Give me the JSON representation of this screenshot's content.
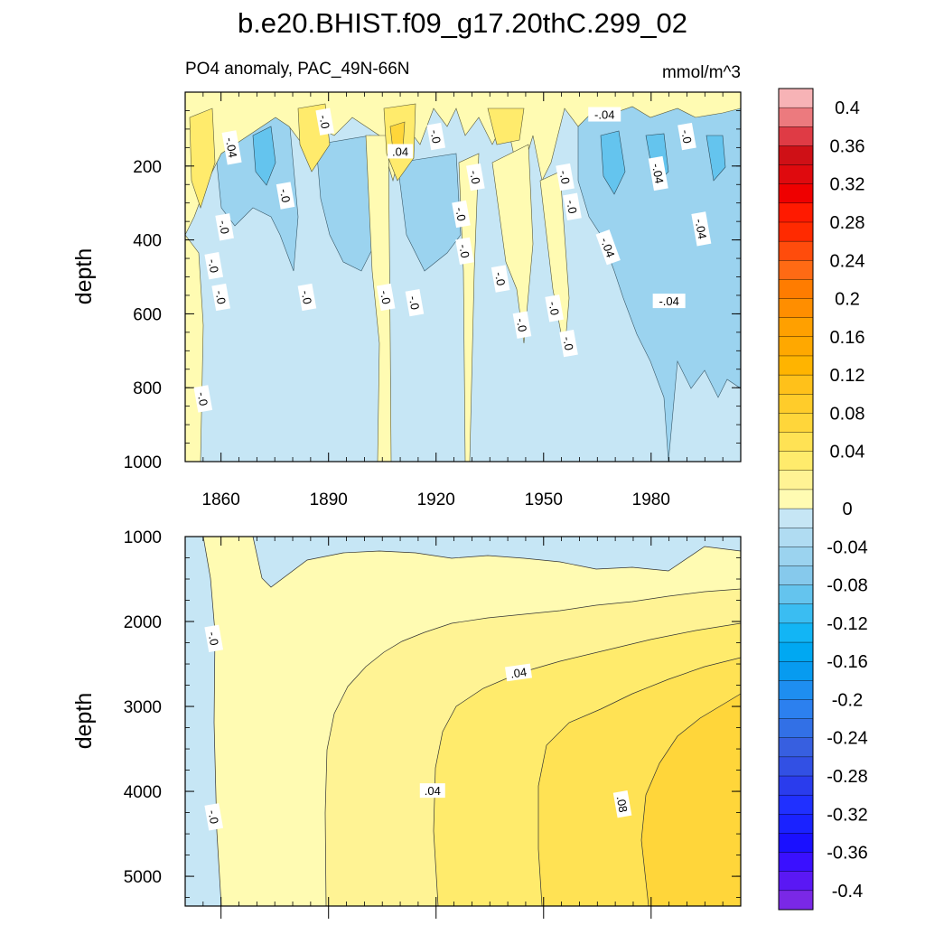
{
  "chart_data": [
    {
      "type": "heatmap",
      "title": "b.e20.BHIST.f09_g17.20thC.299_02",
      "subtitle_left": "PO4 anomaly, PAC_49N-66N",
      "subtitle_right": "mmol/m^3",
      "xlabel": "",
      "ylabel": "depth",
      "xlim": [
        1850,
        2005
      ],
      "ylim": [
        1000,
        0
      ],
      "xticks": [
        1860,
        1890,
        1920,
        1950,
        1980
      ],
      "yticks": [
        200,
        400,
        600,
        800,
        1000
      ],
      "y_reversed": true,
      "contour_labels": [
        {
          "text": "-.04",
          "x": 1863,
          "y": 150
        },
        {
          "text": "-.0",
          "x": 1889,
          "y": 80
        },
        {
          "text": ".04",
          "x": 1910,
          "y": 160
        },
        {
          "text": "-.0",
          "x": 1920,
          "y": 120
        },
        {
          "text": "-.04",
          "x": 1967,
          "y": 60
        },
        {
          "text": "-.04",
          "x": 1982,
          "y": 220
        },
        {
          "text": "-.0",
          "x": 1990,
          "y": 120
        },
        {
          "text": "-.0",
          "x": 1878,
          "y": 280
        },
        {
          "text": "-.0",
          "x": 1861,
          "y": 365
        },
        {
          "text": "-.0",
          "x": 1858,
          "y": 470
        },
        {
          "text": "-.0",
          "x": 1860,
          "y": 555
        },
        {
          "text": "-.0",
          "x": 1884,
          "y": 555
        },
        {
          "text": "-.0",
          "x": 1906,
          "y": 555
        },
        {
          "text": "-.0",
          "x": 1914,
          "y": 570
        },
        {
          "text": "-.0",
          "x": 1928,
          "y": 430
        },
        {
          "text": "-.0",
          "x": 1927,
          "y": 330
        },
        {
          "text": "-.0",
          "x": 1931,
          "y": 230
        },
        {
          "text": "-.0",
          "x": 1938,
          "y": 505
        },
        {
          "text": "-.0",
          "x": 1956,
          "y": 230
        },
        {
          "text": "-.0",
          "x": 1958,
          "y": 310
        },
        {
          "text": "-.04",
          "x": 1968,
          "y": 420
        },
        {
          "text": "-.04",
          "x": 1994,
          "y": 370
        },
        {
          "text": "-.04",
          "x": 1985,
          "y": 565
        },
        {
          "text": "-.0",
          "x": 1944,
          "y": 630
        },
        {
          "text": "-.0",
          "x": 1953,
          "y": 585
        },
        {
          "text": "-.0",
          "x": 1957,
          "y": 680
        },
        {
          "text": "-.0",
          "x": 1855,
          "y": 830
        }
      ]
    },
    {
      "type": "heatmap",
      "xlabel": "",
      "ylabel": "depth",
      "xlim": [
        1850,
        2005
      ],
      "ylim": [
        5350,
        1000
      ],
      "xticks": [
        1860,
        1890,
        1920,
        1950,
        1980
      ],
      "yticks": [
        1000,
        2000,
        3000,
        4000,
        5000
      ],
      "y_reversed": true,
      "contour_labels": [
        {
          "text": "-.0",
          "x": 1858,
          "y": 2200
        },
        {
          "text": ".04",
          "x": 1943,
          "y": 2600
        },
        {
          "text": ".04",
          "x": 1919,
          "y": 3990
        },
        {
          "text": ".08",
          "x": 1972,
          "y": 4150
        },
        {
          "text": "-.0",
          "x": 1858,
          "y": 4300
        }
      ]
    }
  ],
  "colorbar": {
    "levels_top_to_bottom": [
      "0.4",
      "0.36",
      "0.32",
      "0.28",
      "0.24",
      "0.2",
      "0.16",
      "0.12",
      "0.08",
      "0.04",
      "0",
      "-0.04",
      "-0.08",
      "-0.12",
      "-0.16",
      "-0.2",
      "-0.24",
      "-0.28",
      "-0.32",
      "-0.36",
      "-0.4"
    ],
    "colors_top_to_bottom": [
      "#f7b3b6",
      "#ec7a7e",
      "#df3b45",
      "#cf1016",
      "#df0a0e",
      "#ef0000",
      "#ff1a00",
      "#ff2a00",
      "#ff4c0c",
      "#ff6a14",
      "#ff7c00",
      "#ff8e00",
      "#ffa000",
      "#ffa800",
      "#ffb400",
      "#ffc11a",
      "#ffcc2a",
      "#ffd63a",
      "#ffe254",
      "#ffeb6c",
      "#fff394",
      "#fffbb2",
      "#c6e6f5",
      "#b0dcf2",
      "#9bd3ef",
      "#86c9ec",
      "#64c4ee",
      "#3abdf2",
      "#12b5f5",
      "#00a8f2",
      "#079bf0",
      "#1e8ef0",
      "#2c80ef",
      "#3270e6",
      "#375fe0",
      "#3250e4",
      "#2a3ced",
      "#2030ff",
      "#1a22ff",
      "#1a10ff",
      "#3a10ff",
      "#5a18f4",
      "#7a28e6"
    ]
  }
}
